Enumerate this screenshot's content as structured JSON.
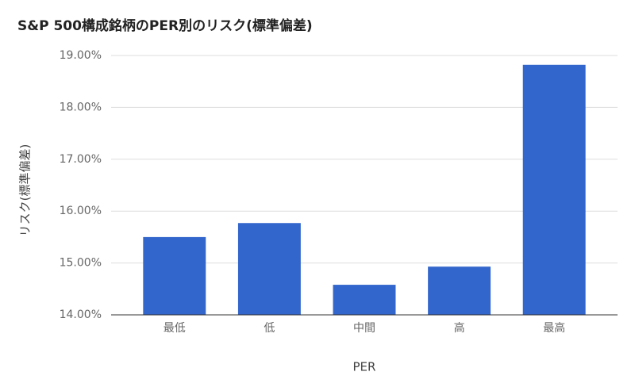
{
  "chart_data": {
    "type": "bar",
    "title": "S&P 500構成銘柄のPER別のリスク(標準偏差)",
    "x_label": "PER",
    "y_label": "リスク(標準偏差)",
    "categories": [
      "最低",
      "低",
      "中間",
      "高",
      "最高"
    ],
    "values": [
      15.5,
      15.77,
      14.58,
      14.93,
      18.82
    ],
    "color": "#3366cc",
    "ylim": [
      14,
      19
    ],
    "yticks": [
      {
        "value": 14,
        "label": "14.00%"
      },
      {
        "value": 15,
        "label": "15.00%"
      },
      {
        "value": 16,
        "label": "16.00%"
      },
      {
        "value": 17,
        "label": "17.00%"
      },
      {
        "value": 18,
        "label": "18.00%"
      },
      {
        "value": 19,
        "label": "19.00%"
      }
    ],
    "grid": true
  }
}
